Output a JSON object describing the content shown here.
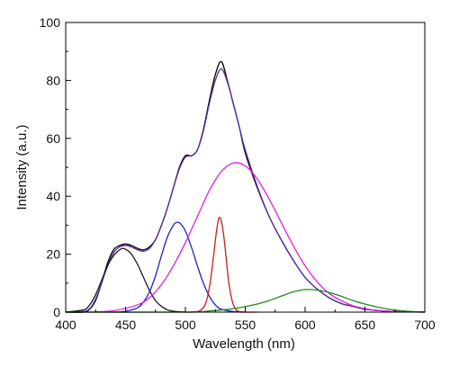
{
  "chart_data": {
    "type": "line",
    "title": "",
    "xlabel": "Wavelength (nm)",
    "ylabel": "Intensity (a.u.)",
    "xlim": [
      400,
      700
    ],
    "ylim": [
      0,
      100
    ],
    "grid": false,
    "legend": "none",
    "x_ticks": [
      400,
      450,
      500,
      550,
      600,
      650,
      700
    ],
    "y_ticks": [
      0,
      20,
      40,
      60,
      80,
      100
    ],
    "x_tick_labels": [
      "400",
      "450",
      "500",
      "550",
      "600",
      "650",
      "700"
    ],
    "y_tick_labels": [
      "0",
      "20",
      "40",
      "60",
      "80",
      "100"
    ],
    "series": [
      {
        "color": "#000000",
        "x": [
          400,
          415,
          420,
          425,
          430,
          435,
          440,
          445,
          450,
          455,
          460,
          465,
          470,
          475,
          480,
          485,
          490,
          495,
          500,
          505,
          510,
          515,
          520,
          525,
          530,
          535,
          540,
          545,
          550,
          560,
          570,
          580,
          590,
          600,
          610,
          620,
          630,
          640,
          650,
          660,
          670,
          680,
          690,
          700
        ],
        "y": [
          0,
          0,
          1,
          4,
          10,
          17,
          21.5,
          23,
          23.5,
          23,
          22,
          21.5,
          22.5,
          25,
          30,
          36,
          43,
          50,
          54,
          54,
          56,
          63,
          73,
          82,
          86.5,
          80,
          72,
          64,
          55,
          43,
          33,
          25,
          18,
          12,
          8,
          5,
          3,
          2,
          1,
          0.6,
          0.3,
          0.2,
          0.1,
          0
        ]
      },
      {
        "color": "#5b2da6",
        "x": [
          400,
          415,
          420,
          425,
          430,
          435,
          440,
          445,
          450,
          455,
          460,
          465,
          470,
          475,
          480,
          485,
          490,
          495,
          500,
          505,
          510,
          515,
          520,
          525,
          530,
          535,
          540,
          545,
          550,
          560,
          570,
          580,
          590,
          600,
          610,
          620,
          630,
          640,
          650,
          660,
          670,
          680,
          690,
          700
        ],
        "y": [
          0,
          0.3,
          1.2,
          4.5,
          10,
          16,
          20.5,
          22.5,
          23,
          22.5,
          21.5,
          21,
          22,
          25,
          30,
          36,
          43,
          49.5,
          53.5,
          54,
          56,
          62.5,
          72,
          80,
          84,
          79.5,
          72,
          64,
          56,
          43.5,
          33,
          25,
          18,
          12,
          8,
          5,
          3,
          2,
          1,
          0.6,
          0.3,
          0.2,
          0.1,
          0
        ]
      },
      {
        "color": "#1a1a1a",
        "x": [
          400,
          415,
          420,
          425,
          430,
          435,
          440,
          445,
          448,
          452,
          455,
          460,
          465,
          470,
          475,
          480,
          485,
          490,
          500
        ],
        "y": [
          0,
          0.8,
          2.5,
          6,
          11,
          16,
          19.5,
          21.5,
          22,
          21.2,
          20,
          16.5,
          12,
          7.5,
          4,
          2,
          0.8,
          0.3,
          0
        ]
      },
      {
        "color": "#2020c8",
        "x": [
          440,
          450,
          460,
          465,
          470,
          475,
          480,
          485,
          490,
          493,
          496,
          500,
          505,
          510,
          515,
          520,
          525,
          530,
          540,
          550
        ],
        "y": [
          0,
          0.3,
          1.5,
          3.5,
          7,
          12.5,
          19.5,
          26,
          30,
          31,
          30.5,
          28,
          22.5,
          16,
          10,
          5.5,
          2.5,
          1,
          0.2,
          0
        ]
      },
      {
        "color": "#c81e1e",
        "x": [
          500,
          510,
          515,
          518,
          521,
          524,
          526,
          528,
          530,
          532,
          534,
          536,
          539,
          542,
          545,
          550,
          560
        ],
        "y": [
          0,
          0.2,
          1.5,
          4.5,
          11,
          21,
          28,
          32.5,
          31.5,
          26.5,
          19,
          11,
          4,
          1,
          0.2,
          0,
          0
        ]
      },
      {
        "color": "#e020e0",
        "x": [
          420,
          440,
          460,
          470,
          480,
          490,
          500,
          510,
          520,
          530,
          540,
          550,
          560,
          570,
          580,
          590,
          600,
          610,
          620,
          630,
          640,
          650,
          660,
          670,
          680,
          700
        ],
        "y": [
          0,
          0.5,
          2.5,
          5,
          9.5,
          16,
          24,
          33,
          42,
          48.5,
          51.5,
          50.5,
          46,
          39,
          31,
          23,
          16,
          10.5,
          6.5,
          4,
          2.2,
          1.2,
          0.6,
          0.3,
          0.1,
          0
        ]
      },
      {
        "color": "#1e8c1e",
        "x": [
          400,
          500,
          520,
          540,
          560,
          570,
          580,
          590,
          600,
          610,
          620,
          630,
          640,
          650,
          660,
          670,
          680,
          690,
          700
        ],
        "y": [
          0,
          0,
          0.4,
          1.2,
          2.8,
          4,
          5.5,
          7,
          7.8,
          7.6,
          6.8,
          5.5,
          4,
          2.8,
          1.8,
          1,
          0.5,
          0.2,
          0.1
        ]
      }
    ]
  }
}
